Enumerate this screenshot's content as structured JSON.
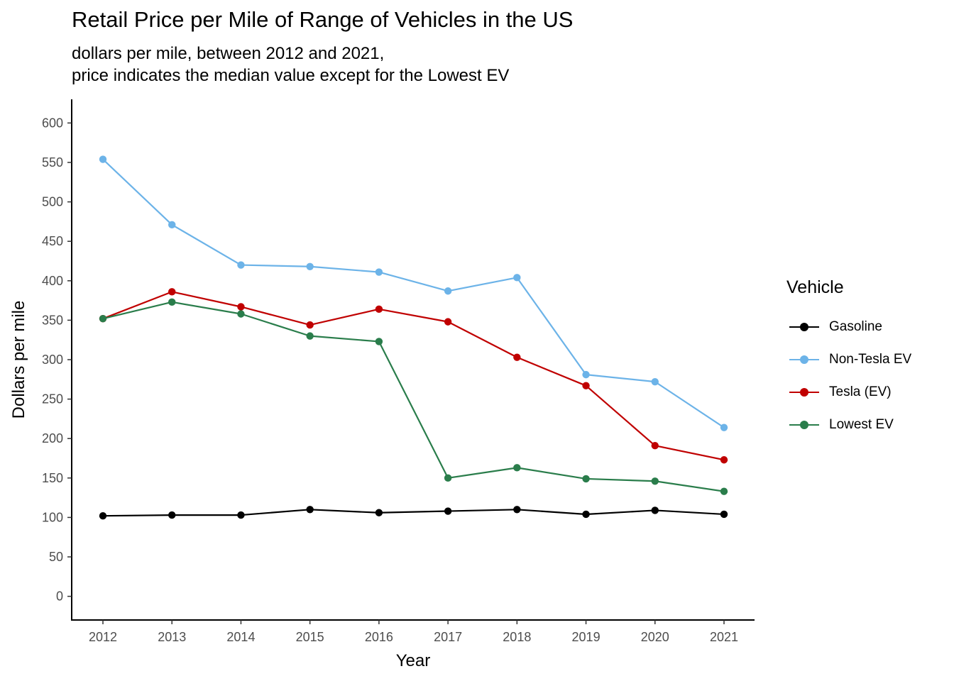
{
  "title": "Retail Price per Mile of Range of Vehicles in the US",
  "subtitle_line1": "dollars per mile, between 2012 and 2021,",
  "subtitle_line2": "price indicates the median value except for the Lowest EV",
  "chart_data": {
    "type": "line",
    "title": "Retail Price per Mile of Range of Vehicles in the US",
    "subtitle": "dollars per mile, between 2012 and 2021, price indicates the median value except for the Lowest EV",
    "xlabel": "Year",
    "ylabel": "Dollars per mile",
    "x": [
      2012,
      2013,
      2014,
      2015,
      2016,
      2017,
      2018,
      2019,
      2020,
      2021
    ],
    "ylim": [
      -30,
      630
    ],
    "yticks": [
      0,
      50,
      100,
      150,
      200,
      250,
      300,
      350,
      400,
      450,
      500,
      550,
      600
    ],
    "grid": false,
    "legend_title": "Vehicle",
    "legend_position": "right",
    "series": [
      {
        "name": "Gasoline",
        "color": "#000000",
        "values": [
          102,
          103,
          103,
          110,
          106,
          108,
          110,
          104,
          109,
          104
        ]
      },
      {
        "name": "Non-Tesla EV",
        "color": "#6cb3e8",
        "values": [
          554,
          471,
          420,
          418,
          411,
          387,
          404,
          281,
          272,
          214
        ]
      },
      {
        "name": "Tesla (EV)",
        "color": "#c00000",
        "values": [
          352,
          386,
          367,
          344,
          364,
          348,
          303,
          267,
          191,
          173
        ]
      },
      {
        "name": "Lowest EV",
        "color": "#2a7d4b",
        "values": [
          352,
          373,
          358,
          330,
          323,
          150,
          163,
          149,
          146,
          133
        ]
      }
    ]
  }
}
